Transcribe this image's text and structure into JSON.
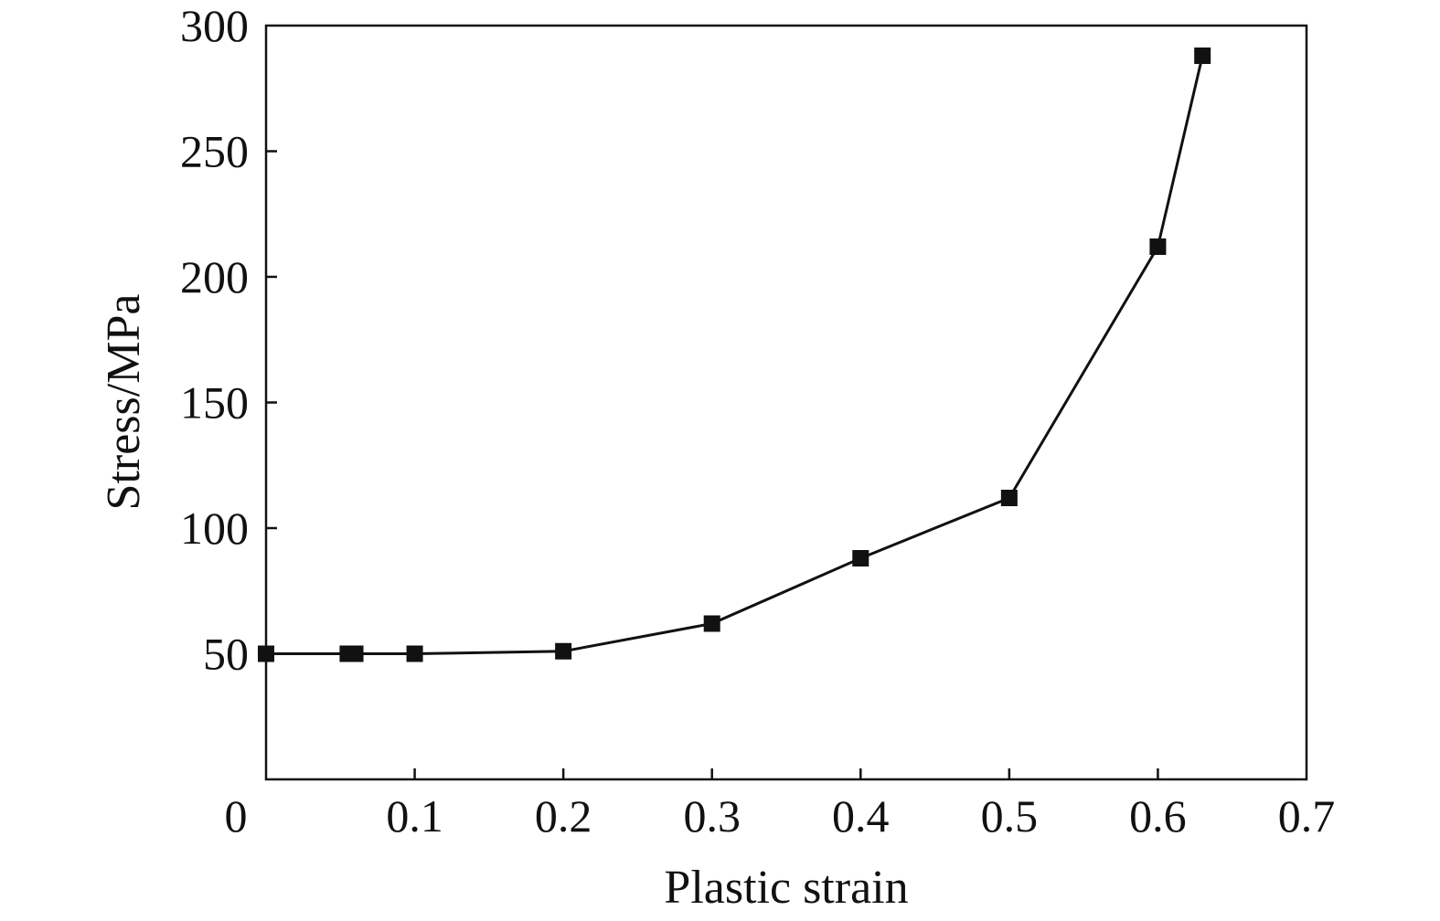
{
  "chart_data": {
    "type": "line",
    "title": "",
    "xlabel": "Plastic strain",
    "ylabel": "Stress/MPa",
    "xlim": [
      0,
      0.7
    ],
    "ylim": [
      0,
      300
    ],
    "x_ticks": [
      "0",
      "0.1",
      "0.2",
      "0.3",
      "0.4",
      "0.5",
      "0.6",
      "0.7"
    ],
    "y_ticks": [
      "50",
      "100",
      "150",
      "200",
      "250",
      "300"
    ],
    "grid": false,
    "legend": "none",
    "marker": "square",
    "color": "#111111",
    "series": [
      {
        "x": [
          0.0,
          0.055,
          0.06,
          0.1,
          0.2,
          0.3,
          0.4,
          0.5,
          0.6,
          0.63
        ],
        "y": [
          50,
          50,
          50,
          50,
          51,
          62,
          88,
          112,
          212,
          288
        ]
      }
    ]
  }
}
